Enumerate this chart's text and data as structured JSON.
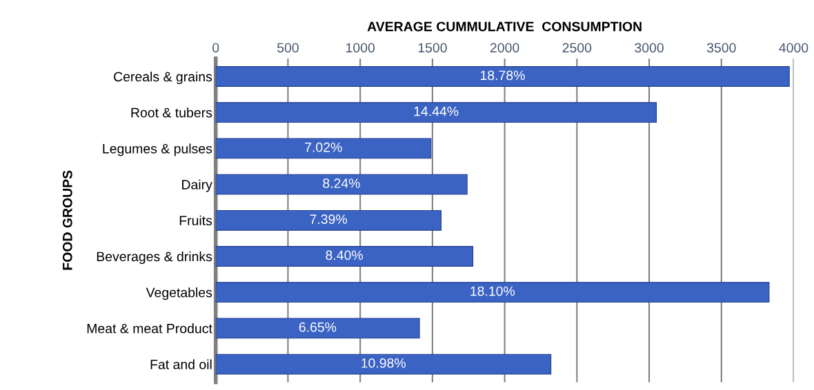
{
  "chart_data": {
    "type": "bar",
    "orientation": "horizontal",
    "xlabel": "AVERAGE CUMMULATIVE  CONSUMPTION",
    "ylabel": "FOOD GROUPS",
    "categories": [
      "Cereals & grains",
      "Root & tubers",
      "Legumes & pulses",
      "Dairy",
      "Fruits",
      "Beverages & drinks",
      "Vegetables",
      "Meat & meat Product",
      "Fat and oil"
    ],
    "values": [
      3970,
      3050,
      1490,
      1740,
      1560,
      1780,
      3830,
      1410,
      2320
    ],
    "annotations": [
      "18.78%",
      "14.44%",
      "7.02%",
      "8.24%",
      "7.39%",
      "8.40%",
      "18.10%",
      "6.65%",
      "10.98%"
    ],
    "color": "#3b63c4",
    "xlim": [
      0,
      4000
    ],
    "xticks": [
      0,
      500,
      1000,
      1500,
      2000,
      2500,
      3000,
      3500,
      4000
    ],
    "grid": "x",
    "legend": false
  }
}
